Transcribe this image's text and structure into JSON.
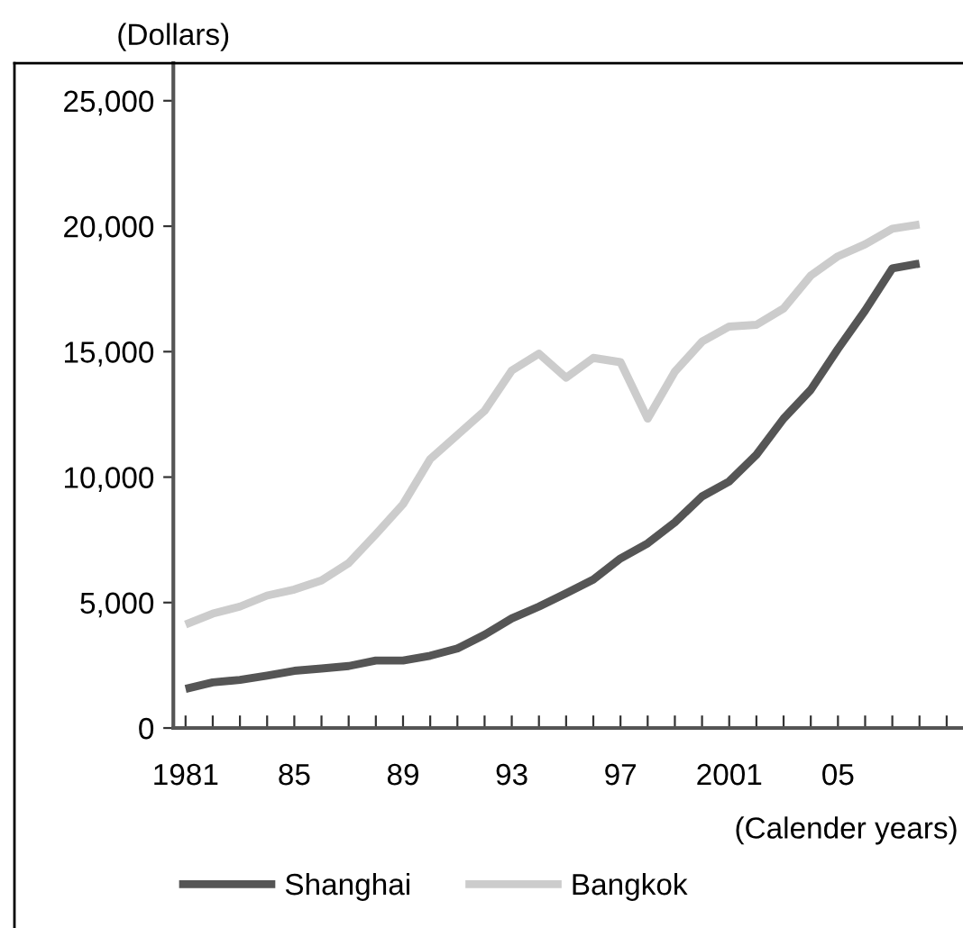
{
  "chart_data": {
    "type": "line",
    "ylabel": "(Dollars)",
    "xlabel": "(Calender years)",
    "x": [
      1981,
      1982,
      1983,
      1984,
      1985,
      1986,
      1987,
      1988,
      1989,
      1990,
      1991,
      1992,
      1993,
      1994,
      1995,
      1996,
      1997,
      1998,
      1999,
      2000,
      2001,
      2002,
      2003,
      2004,
      2005,
      2006,
      2007,
      2008
    ],
    "series": [
      {
        "name": "Shanghai",
        "color": "#555555",
        "values": [
          1560,
          1820,
          1920,
          2090,
          2280,
          2370,
          2470,
          2690,
          2690,
          2880,
          3170,
          3720,
          4370,
          4840,
          5370,
          5920,
          6760,
          7360,
          8200,
          9230,
          9830,
          10890,
          12330,
          13480,
          15110,
          16640,
          18320,
          18510
        ]
      },
      {
        "name": "Bangkok",
        "color": "#cccccc",
        "values": [
          4130,
          4560,
          4840,
          5280,
          5520,
          5880,
          6570,
          7720,
          8920,
          10720,
          11680,
          12640,
          14250,
          14920,
          13960,
          14750,
          14580,
          12330,
          14200,
          15400,
          16000,
          16070,
          16720,
          18030,
          18800,
          19280,
          19900,
          20070
        ]
      }
    ],
    "xlim": [
      1980.55,
      2009.6
    ],
    "ylim": [
      0,
      26500
    ],
    "xticks": [
      {
        "value": 1981,
        "label": "1981"
      },
      {
        "value": 1982,
        "label": null
      },
      {
        "value": 1983,
        "label": null
      },
      {
        "value": 1984,
        "label": null
      },
      {
        "value": 1985,
        "label": "85"
      },
      {
        "value": 1986,
        "label": null
      },
      {
        "value": 1987,
        "label": null
      },
      {
        "value": 1988,
        "label": null
      },
      {
        "value": 1989,
        "label": "89"
      },
      {
        "value": 1990,
        "label": null
      },
      {
        "value": 1991,
        "label": null
      },
      {
        "value": 1992,
        "label": null
      },
      {
        "value": 1993,
        "label": "93"
      },
      {
        "value": 1994,
        "label": null
      },
      {
        "value": 1995,
        "label": null
      },
      {
        "value": 1996,
        "label": null
      },
      {
        "value": 1997,
        "label": "97"
      },
      {
        "value": 1998,
        "label": null
      },
      {
        "value": 1999,
        "label": null
      },
      {
        "value": 2000,
        "label": null
      },
      {
        "value": 2001,
        "label": "2001"
      },
      {
        "value": 2002,
        "label": null
      },
      {
        "value": 2003,
        "label": null
      },
      {
        "value": 2004,
        "label": null
      },
      {
        "value": 2005,
        "label": "05"
      },
      {
        "value": 2006,
        "label": null
      },
      {
        "value": 2007,
        "label": null
      },
      {
        "value": 2008,
        "label": null
      },
      {
        "value": 2009,
        "label": null
      }
    ],
    "yticks": [
      0,
      {
        "value": 5000,
        "label": "5,000"
      },
      {
        "value": 10000,
        "label": "10,000"
      },
      {
        "value": 15000,
        "label": "15,000"
      },
      {
        "value": 20000,
        "label": "20,000"
      },
      {
        "value": 25000,
        "label": "25,000"
      }
    ],
    "grid": false,
    "legend": "bottom",
    "marker": "none",
    "line_style": "solid"
  }
}
